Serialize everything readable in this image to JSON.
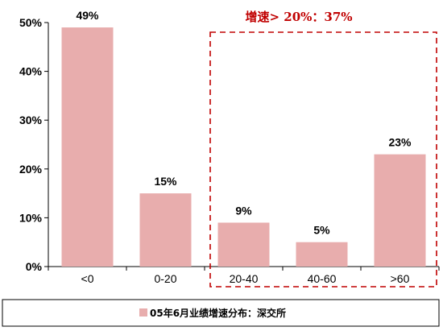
{
  "chart_data": {
    "type": "bar",
    "categories": [
      "<0",
      "0-20",
      "20-40",
      "40-60",
      ">60"
    ],
    "values": [
      49,
      15,
      9,
      5,
      23
    ],
    "data_labels": [
      "49%",
      "15%",
      "9%",
      "5%",
      "23%"
    ],
    "ylim": [
      0,
      50
    ],
    "y_ticks": [
      0,
      10,
      20,
      30,
      40,
      50
    ],
    "y_tick_labels": [
      "0%",
      "10%",
      "20%",
      "30%",
      "40%",
      "50%"
    ],
    "grid": false,
    "legend": {
      "position": "bottom",
      "entries": [
        {
          "label": "05年6月业绩增速分布：深交所"
        }
      ]
    },
    "annotation": {
      "text": "增速> 20%：37%",
      "highlight_categories": [
        "20-40",
        "40-60",
        ">60"
      ],
      "style": "dashed-box"
    }
  },
  "colors": {
    "bar": "#e8adad",
    "axis": "#000000",
    "annotation": "#c00000"
  }
}
